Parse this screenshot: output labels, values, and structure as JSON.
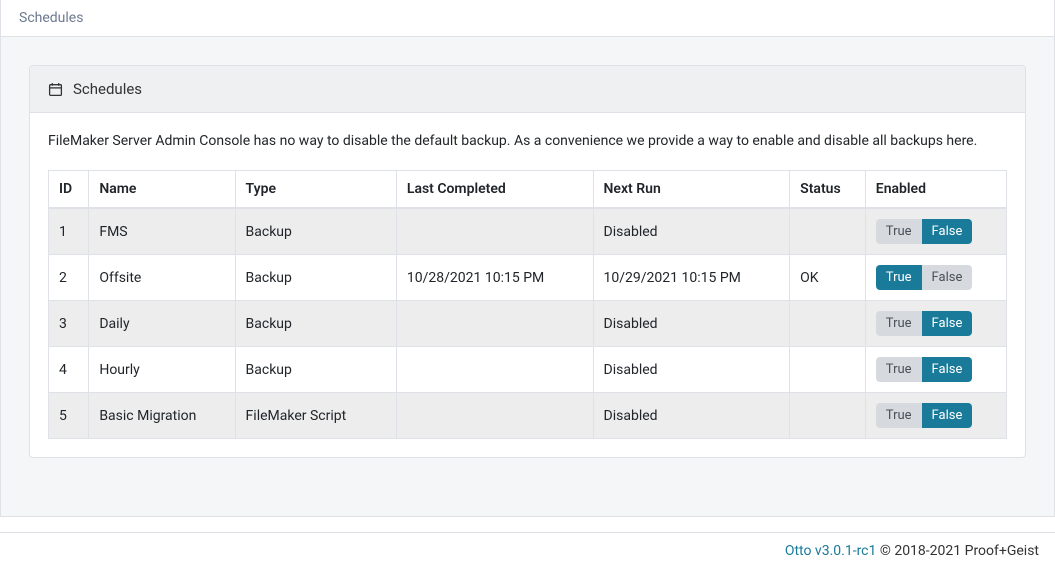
{
  "breadcrumb": "Schedules",
  "card": {
    "title": "Schedules",
    "description": "FileMaker Server Admin Console has no way to disable the default backup. As a convenience we provide a way to enable and disable all backups here."
  },
  "table": {
    "columns": {
      "id": "ID",
      "name": "Name",
      "type": "Type",
      "last_completed": "Last Completed",
      "next_run": "Next Run",
      "status": "Status",
      "enabled": "Enabled"
    },
    "rows": [
      {
        "id": "1",
        "name": "FMS",
        "type": "Backup",
        "last_completed": "",
        "next_run": "Disabled",
        "status": "",
        "enabled": false
      },
      {
        "id": "2",
        "name": "Offsite",
        "type": "Backup",
        "last_completed": "10/28/2021 10:15 PM",
        "next_run": "10/29/2021 10:15 PM",
        "status": "OK",
        "enabled": true
      },
      {
        "id": "3",
        "name": "Daily",
        "type": "Backup",
        "last_completed": "",
        "next_run": "Disabled",
        "status": "",
        "enabled": false
      },
      {
        "id": "4",
        "name": "Hourly",
        "type": "Backup",
        "last_completed": "",
        "next_run": "Disabled",
        "status": "",
        "enabled": false
      },
      {
        "id": "5",
        "name": "Basic Migration",
        "type": "FileMaker Script",
        "last_completed": "",
        "next_run": "Disabled",
        "status": "",
        "enabled": false
      }
    ],
    "toggle_labels": {
      "true": "True",
      "false": "False"
    }
  },
  "footer": {
    "link_text": "Otto v3.0.1-rc1",
    "copyright": " © 2018-2021 Proof+Geist"
  },
  "colors": {
    "accent": "#1a7a99",
    "inactive_bg": "#d6dadf",
    "border": "#dee2e6",
    "header_bg": "#eef0f2",
    "row_odd": "#ededed",
    "row_even": "#ffffff",
    "breadcrumb_text": "#6c7a8f"
  }
}
